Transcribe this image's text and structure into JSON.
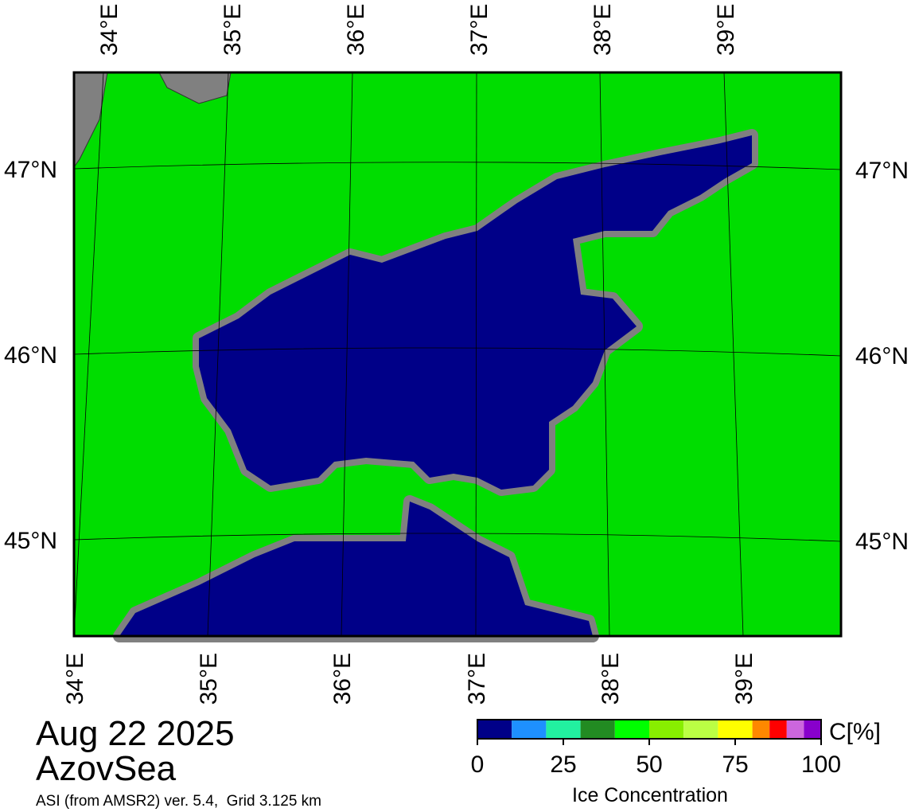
{
  "header": {
    "date": "Aug 22 2025",
    "region": "AzovSea",
    "source": "ASI (from AMSR2) ver. 5.4,  Grid 3.125 km"
  },
  "map": {
    "lon_labels": [
      "34°E",
      "35°E",
      "36°E",
      "37°E",
      "38°E",
      "39°E"
    ],
    "lat_labels": [
      "47°N",
      "46°N",
      "45°N"
    ]
  },
  "colorbar": {
    "unit_label": "C[%]",
    "title": "Ice Concentration",
    "bounds": [
      0,
      10,
      20,
      30,
      40,
      50,
      60,
      70,
      80,
      85,
      90,
      95,
      100
    ],
    "colors": [
      "#000088",
      "#1e90ff",
      "#22f0a0",
      "#228b22",
      "#00ff00",
      "#88ee00",
      "#bbff44",
      "#ffff00",
      "#ff8800",
      "#ff0000",
      "#cc66dd",
      "#8800cc"
    ],
    "range": [
      0,
      100
    ],
    "ticks": [
      0,
      25,
      50,
      75,
      100
    ]
  }
}
